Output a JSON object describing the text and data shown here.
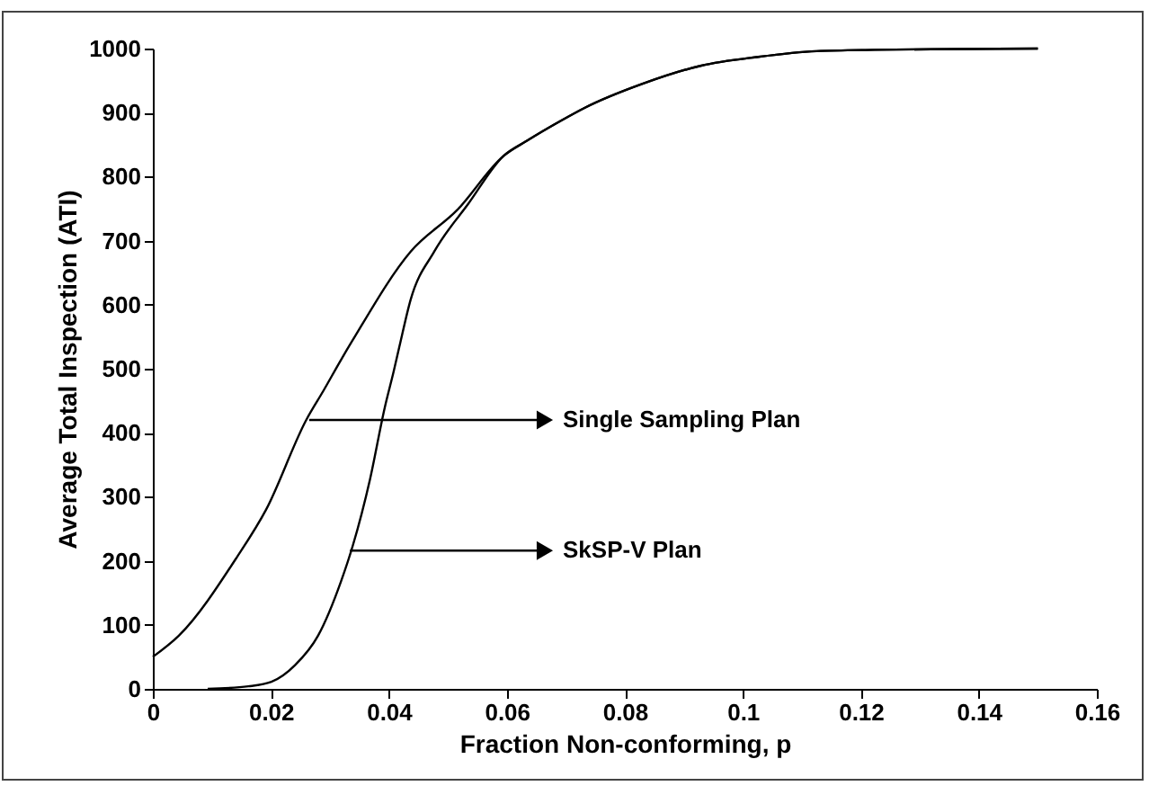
{
  "chart_data": {
    "type": "line",
    "xlabel": "Fraction Non-conforming,  p",
    "ylabel": "Average Total Inspection (ATI)",
    "xlim": [
      0,
      0.16
    ],
    "xticks": [
      0,
      0.02,
      0.04,
      0.06,
      0.08,
      0.1,
      0.12,
      0.14,
      {
        "value": 0.16,
        "label": "0.16"
      }
    ],
    "ylim": [
      0,
      1000
    ],
    "yticks": [
      0,
      100,
      200,
      300,
      400,
      500,
      600,
      700,
      800,
      900,
      1000
    ],
    "grid": false,
    "marker": "none",
    "line_style": "solid",
    "series": [
      {
        "color": "#000000",
        "x": [
          0,
          0.0044,
          0.0142,
          0.0192,
          0.026,
          0.029,
          0.0319,
          0.0339,
          0.0437,
          0.0516,
          0.0594,
          0.0634,
          0.0693,
          0.0731,
          0.083,
          0.0928,
          0.1026,
          0.1125,
          0.1223,
          0.132,
          0.15
        ],
        "values": [
          50,
          83,
          205,
          280,
          420,
          467,
          514,
          545,
          683,
          748,
          832,
          856,
          888,
          907,
          945,
          973,
          987,
          996,
          998,
          999,
          1000
        ]
      },
      {
        "color": "#000000",
        "x": [
          0.0093,
          0.0162,
          0.0201,
          0.0241,
          0.028,
          0.0319,
          0.0339,
          0.0368,
          0.0393,
          0.0408,
          0.0418,
          0.0437,
          0.0477,
          0.0535,
          0.0594,
          0.0634,
          0.0693,
          0.0731,
          0.083,
          0.0928,
          0.1026,
          0.1125,
          0.1223,
          0.132,
          0.15
        ],
        "values": [
          0,
          4,
          11,
          37,
          83,
          168,
          224,
          327,
          439,
          495,
          535,
          608,
          683,
          758,
          832,
          856,
          888,
          907,
          945,
          973,
          987,
          996,
          998,
          999,
          1000
        ]
      }
    ],
    "annotations": [
      {
        "text": "Single Sampling Plan",
        "x": 0.0265,
        "y": 420
      },
      {
        "text": "SkSP-V Plan",
        "x": 0.0334,
        "y": 216
      }
    ]
  }
}
